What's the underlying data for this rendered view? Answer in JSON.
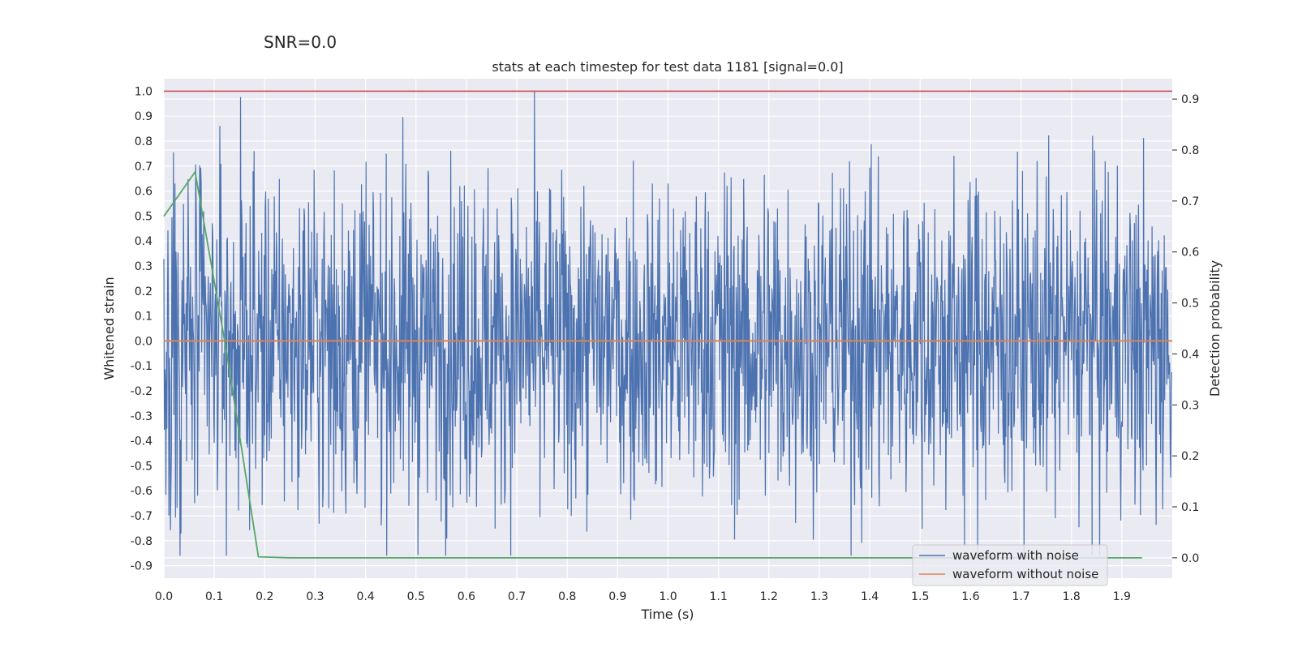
{
  "suptitle": "SNR=0.0",
  "chart_data": {
    "type": "line",
    "title": "stats at each timestep for test data 1181 [signal=0.0]",
    "xlabel": "Time (s)",
    "ylabel": "Whitened strain",
    "y2label": "Detection probability",
    "xlim": [
      0.0,
      2.0
    ],
    "ylim": [
      -0.95,
      1.05
    ],
    "y2lim": [
      -0.04,
      0.94
    ],
    "xticks": [
      "0.0",
      "0.1",
      "0.2",
      "0.3",
      "0.4",
      "0.5",
      "0.6",
      "0.7",
      "0.8",
      "0.9",
      "1.0",
      "1.1",
      "1.2",
      "1.3",
      "1.4",
      "1.5",
      "1.6",
      "1.7",
      "1.8",
      "1.9"
    ],
    "yticks": [
      "1.0",
      "0.9",
      "0.8",
      "0.7",
      "0.6",
      "0.5",
      "0.4",
      "0.3",
      "0.2",
      "0.1",
      "0.0",
      "-0.1",
      "-0.2",
      "-0.3",
      "-0.4",
      "-0.5",
      "-0.6",
      "-0.7",
      "-0.8",
      "-0.9"
    ],
    "y2ticks": [
      "0.9",
      "0.8",
      "0.7",
      "0.6",
      "0.5",
      "0.4",
      "0.3",
      "0.2",
      "0.1",
      "0.0"
    ],
    "threshold": {
      "value": 1.0,
      "color": "#c44e52"
    },
    "series": [
      {
        "name": "waveform with noise",
        "color": "#4c72b0",
        "axis": "left",
        "description": "whitened strain noise, fluctuating roughly within [-0.86, 1.0]"
      },
      {
        "name": "waveform without noise",
        "color": "#dd8452",
        "axis": "left",
        "x": [
          0.0,
          2.0
        ],
        "values": [
          0.0,
          0.0
        ]
      },
      {
        "name": "detection probability",
        "color": "#55a868",
        "axis": "right",
        "x": [
          0.0,
          0.062,
          0.125,
          0.1875,
          0.25,
          1.94
        ],
        "values": [
          0.67,
          0.757,
          0.4,
          0.002,
          0.0,
          0.0
        ]
      }
    ],
    "legend": {
      "position": "lower-right",
      "entries": [
        {
          "label": "waveform with noise",
          "color": "#4c72b0"
        },
        {
          "label": "waveform without noise",
          "color": "#dd8452"
        }
      ]
    },
    "grid": true
  }
}
